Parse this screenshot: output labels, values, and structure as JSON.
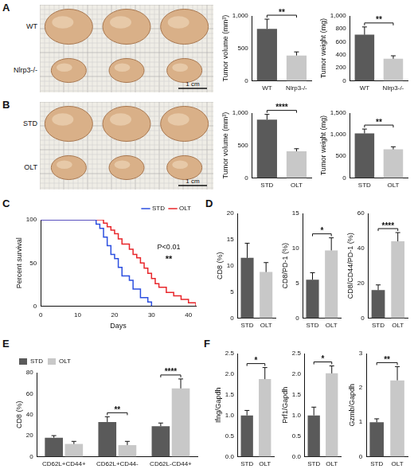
{
  "images": [
    {
      "panel": "A",
      "rows": [
        "WT",
        "Nlrp3-/-"
      ],
      "scale_bar": "1 cm"
    },
    {
      "panel": "B",
      "rows": [
        "STD",
        "OLT"
      ],
      "scale_bar": "1 cm"
    }
  ],
  "chart_data": [
    {
      "panel": "A",
      "type": "bar",
      "categories": [
        "WT",
        "Nlrp3-/-"
      ],
      "y_label": "Tumor volume (mm³)",
      "values": [
        800,
        390
      ],
      "errors": [
        150,
        55
      ],
      "colors": [
        "#5a5a5a",
        "#c8c8c8"
      ],
      "significance": "**",
      "ylim": [
        0,
        1000
      ],
      "yticks": [
        0,
        500,
        {
          "value": 1000,
          "label": "1,000"
        }
      ]
    },
    {
      "panel": "A",
      "type": "bar",
      "categories": [
        "WT",
        "Nlrp3-/-"
      ],
      "y_label": "Tumor weight (mg)",
      "values": [
        710,
        340
      ],
      "errors": [
        120,
        45
      ],
      "colors": [
        "#5a5a5a",
        "#c8c8c8"
      ],
      "significance": "**",
      "ylim": [
        0,
        1000
      ],
      "yticks": [
        0,
        200,
        400,
        600,
        800,
        {
          "value": 1000,
          "label": "1,000"
        }
      ]
    },
    {
      "panel": "B",
      "type": "bar",
      "categories": [
        "STD",
        "OLT"
      ],
      "y_label": "Tumor volume (mm³)",
      "values": [
        900,
        410
      ],
      "errors": [
        80,
        40
      ],
      "colors": [
        "#5a5a5a",
        "#c8c8c8"
      ],
      "significance": "****",
      "ylim": [
        0,
        1000
      ],
      "yticks": [
        0,
        500,
        {
          "value": 1000,
          "label": "1,000"
        }
      ]
    },
    {
      "panel": "B",
      "type": "bar",
      "categories": [
        "STD",
        "OLT"
      ],
      "y_label": "Tumor weight (mg)",
      "values": [
        1030,
        660
      ],
      "errors": [
        100,
        60
      ],
      "colors": [
        "#5a5a5a",
        "#c8c8c8"
      ],
      "significance": "**",
      "ylim": [
        0,
        1500
      ],
      "yticks": [
        0,
        500,
        {
          "value": 1000,
          "label": "1,000"
        },
        {
          "value": 1500,
          "label": "1,500"
        }
      ]
    },
    {
      "panel": "C",
      "type": "line",
      "x_label": "Days",
      "y_label": "Percent survival",
      "xlim": [
        0,
        42
      ],
      "xticks": [
        0,
        10,
        20,
        30,
        40
      ],
      "ylim": [
        0,
        100
      ],
      "yticks": [
        0,
        50,
        100
      ],
      "legend": "top-right",
      "annotations": [
        "P<0.01",
        "**"
      ],
      "series": [
        {
          "name": "STD",
          "color": "#2c4fe0",
          "line_style": "step",
          "x": [
            0,
            15,
            16,
            17,
            18,
            19,
            20,
            21,
            22,
            24,
            25,
            27,
            29,
            30
          ],
          "values": [
            100,
            95,
            90,
            80,
            70,
            60,
            55,
            45,
            35,
            30,
            20,
            10,
            5,
            0
          ]
        },
        {
          "name": "OLT",
          "color": "#e8262b",
          "line_style": "step",
          "x": [
            0,
            17,
            18,
            19,
            20,
            21,
            22,
            24,
            25,
            26,
            27,
            28,
            29,
            30,
            31,
            32,
            34,
            36,
            38,
            40,
            42
          ],
          "values": [
            100,
            96,
            92,
            88,
            84,
            78,
            72,
            66,
            60,
            56,
            50,
            44,
            38,
            32,
            26,
            22,
            16,
            12,
            8,
            4,
            0
          ]
        }
      ]
    },
    {
      "panel": "D",
      "type": "bar",
      "categories": [
        "STD",
        "OLT"
      ],
      "y_label": "CD8 (%)",
      "values": [
        11.5,
        8.8
      ],
      "errors": [
        2.8,
        1.8
      ],
      "colors": [
        "#5a5a5a",
        "#c8c8c8"
      ],
      "ylim": [
        0,
        20
      ],
      "yticks": [
        0,
        5,
        10,
        15,
        20
      ]
    },
    {
      "panel": "D",
      "type": "bar",
      "categories": [
        "STD",
        "OLT"
      ],
      "y_label": "CD8/PD-1 (%)",
      "values": [
        5.5,
        9.7
      ],
      "errors": [
        1.0,
        1.8
      ],
      "colors": [
        "#5a5a5a",
        "#c8c8c8"
      ],
      "significance": "*",
      "ylim": [
        0,
        15
      ],
      "yticks": [
        0,
        5,
        10,
        15
      ]
    },
    {
      "panel": "D",
      "type": "bar",
      "categories": [
        "STD",
        "OLT"
      ],
      "y_label": "CD8/CD44/PD-1 (%)",
      "values": [
        16,
        44
      ],
      "errors": [
        3,
        5
      ],
      "colors": [
        "#5a5a5a",
        "#c8c8c8"
      ],
      "significance": "****",
      "ylim": [
        0,
        60
      ],
      "yticks": [
        0,
        20,
        40,
        60
      ]
    },
    {
      "panel": "E",
      "type": "bar",
      "categories": [
        "CD62L+CD44+",
        "CD62L+CD44-",
        "CD62L-CD44+"
      ],
      "y_label": "CD8 (%)",
      "legend": "top-left",
      "significance": [
        null,
        "**",
        "****"
      ],
      "ylim": [
        0,
        80
      ],
      "yticks": [
        0,
        20,
        40,
        60,
        80
      ],
      "series": [
        {
          "name": "STD",
          "color": "#5a5a5a",
          "values": [
            18,
            33,
            29
          ],
          "errors": [
            2,
            5,
            3
          ]
        },
        {
          "name": "OLT",
          "color": "#c8c8c8",
          "values": [
            12,
            11,
            65
          ],
          "errors": [
            2.5,
            3.5,
            9
          ]
        }
      ]
    },
    {
      "panel": "F",
      "type": "bar",
      "categories": [
        "STD",
        "OLT"
      ],
      "y_label": "Ifng/Gapdh",
      "values": [
        1.0,
        1.88
      ],
      "errors": [
        0.12,
        0.28
      ],
      "colors": [
        "#5a5a5a",
        "#c8c8c8"
      ],
      "significance": "*",
      "ylim": [
        0,
        2.5
      ],
      "yticks": [
        {
          "value": 0,
          "label": "0.0"
        },
        {
          "value": 0.5,
          "label": "0.5"
        },
        {
          "value": 1,
          "label": "1.0"
        },
        {
          "value": 1.5,
          "label": "1.5"
        },
        {
          "value": 2,
          "label": "2.0"
        },
        {
          "value": 2.5,
          "label": "2.5"
        }
      ]
    },
    {
      "panel": "F",
      "type": "bar",
      "categories": [
        "STD",
        "OLT"
      ],
      "y_label": "Prf1/Gapdh",
      "values": [
        1.0,
        2.02
      ],
      "errors": [
        0.2,
        0.18
      ],
      "colors": [
        "#5a5a5a",
        "#c8c8c8"
      ],
      "significance": "*",
      "ylim": [
        0,
        2.5
      ],
      "yticks": [
        {
          "value": 0,
          "label": "0.0"
        },
        {
          "value": 0.5,
          "label": "0.5"
        },
        {
          "value": 1,
          "label": "1.0"
        },
        {
          "value": 1.5,
          "label": "1.5"
        },
        {
          "value": 2,
          "label": "2.0"
        },
        {
          "value": 2.5,
          "label": "2.5"
        }
      ]
    },
    {
      "panel": "F",
      "type": "bar",
      "categories": [
        "STD",
        "OLT"
      ],
      "y_label": "Gzmb/Gapdh",
      "values": [
        1.0,
        2.22
      ],
      "errors": [
        0.1,
        0.4
      ],
      "colors": [
        "#5a5a5a",
        "#c8c8c8"
      ],
      "significance": "**",
      "ylim": [
        0,
        3
      ],
      "yticks": [
        0,
        1,
        2,
        3
      ]
    }
  ]
}
